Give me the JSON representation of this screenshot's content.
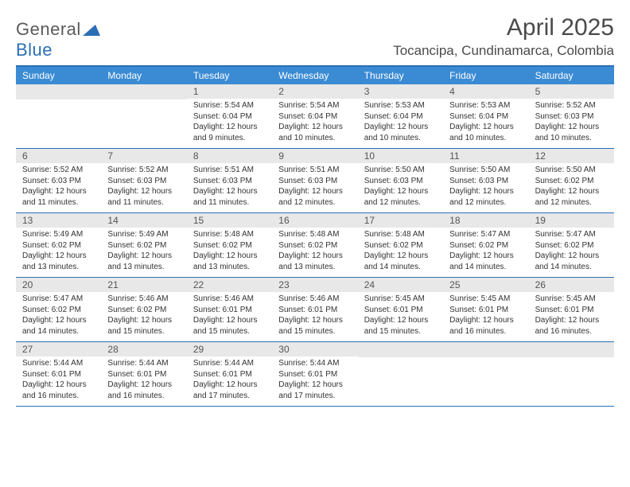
{
  "brand": {
    "name_a": "General",
    "name_b": "Blue"
  },
  "title": "April 2025",
  "location": "Tocancipa, Cundinamarca, Colombia",
  "colors": {
    "header_bg": "#3b8bd4",
    "border": "#2a6fb5",
    "daynum_bg": "#e8e8e8",
    "text": "#333333",
    "text_muted": "#555555",
    "bg": "#ffffff"
  },
  "weekdays": [
    "Sunday",
    "Monday",
    "Tuesday",
    "Wednesday",
    "Thursday",
    "Friday",
    "Saturday"
  ],
  "weeks": [
    [
      null,
      null,
      {
        "n": "1",
        "sunrise": "Sunrise: 5:54 AM",
        "sunset": "Sunset: 6:04 PM",
        "day1": "Daylight: 12 hours",
        "day2": "and 9 minutes."
      },
      {
        "n": "2",
        "sunrise": "Sunrise: 5:54 AM",
        "sunset": "Sunset: 6:04 PM",
        "day1": "Daylight: 12 hours",
        "day2": "and 10 minutes."
      },
      {
        "n": "3",
        "sunrise": "Sunrise: 5:53 AM",
        "sunset": "Sunset: 6:04 PM",
        "day1": "Daylight: 12 hours",
        "day2": "and 10 minutes."
      },
      {
        "n": "4",
        "sunrise": "Sunrise: 5:53 AM",
        "sunset": "Sunset: 6:04 PM",
        "day1": "Daylight: 12 hours",
        "day2": "and 10 minutes."
      },
      {
        "n": "5",
        "sunrise": "Sunrise: 5:52 AM",
        "sunset": "Sunset: 6:03 PM",
        "day1": "Daylight: 12 hours",
        "day2": "and 10 minutes."
      }
    ],
    [
      {
        "n": "6",
        "sunrise": "Sunrise: 5:52 AM",
        "sunset": "Sunset: 6:03 PM",
        "day1": "Daylight: 12 hours",
        "day2": "and 11 minutes."
      },
      {
        "n": "7",
        "sunrise": "Sunrise: 5:52 AM",
        "sunset": "Sunset: 6:03 PM",
        "day1": "Daylight: 12 hours",
        "day2": "and 11 minutes."
      },
      {
        "n": "8",
        "sunrise": "Sunrise: 5:51 AM",
        "sunset": "Sunset: 6:03 PM",
        "day1": "Daylight: 12 hours",
        "day2": "and 11 minutes."
      },
      {
        "n": "9",
        "sunrise": "Sunrise: 5:51 AM",
        "sunset": "Sunset: 6:03 PM",
        "day1": "Daylight: 12 hours",
        "day2": "and 12 minutes."
      },
      {
        "n": "10",
        "sunrise": "Sunrise: 5:50 AM",
        "sunset": "Sunset: 6:03 PM",
        "day1": "Daylight: 12 hours",
        "day2": "and 12 minutes."
      },
      {
        "n": "11",
        "sunrise": "Sunrise: 5:50 AM",
        "sunset": "Sunset: 6:03 PM",
        "day1": "Daylight: 12 hours",
        "day2": "and 12 minutes."
      },
      {
        "n": "12",
        "sunrise": "Sunrise: 5:50 AM",
        "sunset": "Sunset: 6:02 PM",
        "day1": "Daylight: 12 hours",
        "day2": "and 12 minutes."
      }
    ],
    [
      {
        "n": "13",
        "sunrise": "Sunrise: 5:49 AM",
        "sunset": "Sunset: 6:02 PM",
        "day1": "Daylight: 12 hours",
        "day2": "and 13 minutes."
      },
      {
        "n": "14",
        "sunrise": "Sunrise: 5:49 AM",
        "sunset": "Sunset: 6:02 PM",
        "day1": "Daylight: 12 hours",
        "day2": "and 13 minutes."
      },
      {
        "n": "15",
        "sunrise": "Sunrise: 5:48 AM",
        "sunset": "Sunset: 6:02 PM",
        "day1": "Daylight: 12 hours",
        "day2": "and 13 minutes."
      },
      {
        "n": "16",
        "sunrise": "Sunrise: 5:48 AM",
        "sunset": "Sunset: 6:02 PM",
        "day1": "Daylight: 12 hours",
        "day2": "and 13 minutes."
      },
      {
        "n": "17",
        "sunrise": "Sunrise: 5:48 AM",
        "sunset": "Sunset: 6:02 PM",
        "day1": "Daylight: 12 hours",
        "day2": "and 14 minutes."
      },
      {
        "n": "18",
        "sunrise": "Sunrise: 5:47 AM",
        "sunset": "Sunset: 6:02 PM",
        "day1": "Daylight: 12 hours",
        "day2": "and 14 minutes."
      },
      {
        "n": "19",
        "sunrise": "Sunrise: 5:47 AM",
        "sunset": "Sunset: 6:02 PM",
        "day1": "Daylight: 12 hours",
        "day2": "and 14 minutes."
      }
    ],
    [
      {
        "n": "20",
        "sunrise": "Sunrise: 5:47 AM",
        "sunset": "Sunset: 6:02 PM",
        "day1": "Daylight: 12 hours",
        "day2": "and 14 minutes."
      },
      {
        "n": "21",
        "sunrise": "Sunrise: 5:46 AM",
        "sunset": "Sunset: 6:02 PM",
        "day1": "Daylight: 12 hours",
        "day2": "and 15 minutes."
      },
      {
        "n": "22",
        "sunrise": "Sunrise: 5:46 AM",
        "sunset": "Sunset: 6:01 PM",
        "day1": "Daylight: 12 hours",
        "day2": "and 15 minutes."
      },
      {
        "n": "23",
        "sunrise": "Sunrise: 5:46 AM",
        "sunset": "Sunset: 6:01 PM",
        "day1": "Daylight: 12 hours",
        "day2": "and 15 minutes."
      },
      {
        "n": "24",
        "sunrise": "Sunrise: 5:45 AM",
        "sunset": "Sunset: 6:01 PM",
        "day1": "Daylight: 12 hours",
        "day2": "and 15 minutes."
      },
      {
        "n": "25",
        "sunrise": "Sunrise: 5:45 AM",
        "sunset": "Sunset: 6:01 PM",
        "day1": "Daylight: 12 hours",
        "day2": "and 16 minutes."
      },
      {
        "n": "26",
        "sunrise": "Sunrise: 5:45 AM",
        "sunset": "Sunset: 6:01 PM",
        "day1": "Daylight: 12 hours",
        "day2": "and 16 minutes."
      }
    ],
    [
      {
        "n": "27",
        "sunrise": "Sunrise: 5:44 AM",
        "sunset": "Sunset: 6:01 PM",
        "day1": "Daylight: 12 hours",
        "day2": "and 16 minutes."
      },
      {
        "n": "28",
        "sunrise": "Sunrise: 5:44 AM",
        "sunset": "Sunset: 6:01 PM",
        "day1": "Daylight: 12 hours",
        "day2": "and 16 minutes."
      },
      {
        "n": "29",
        "sunrise": "Sunrise: 5:44 AM",
        "sunset": "Sunset: 6:01 PM",
        "day1": "Daylight: 12 hours",
        "day2": "and 17 minutes."
      },
      {
        "n": "30",
        "sunrise": "Sunrise: 5:44 AM",
        "sunset": "Sunset: 6:01 PM",
        "day1": "Daylight: 12 hours",
        "day2": "and 17 minutes."
      },
      null,
      null,
      null
    ]
  ]
}
